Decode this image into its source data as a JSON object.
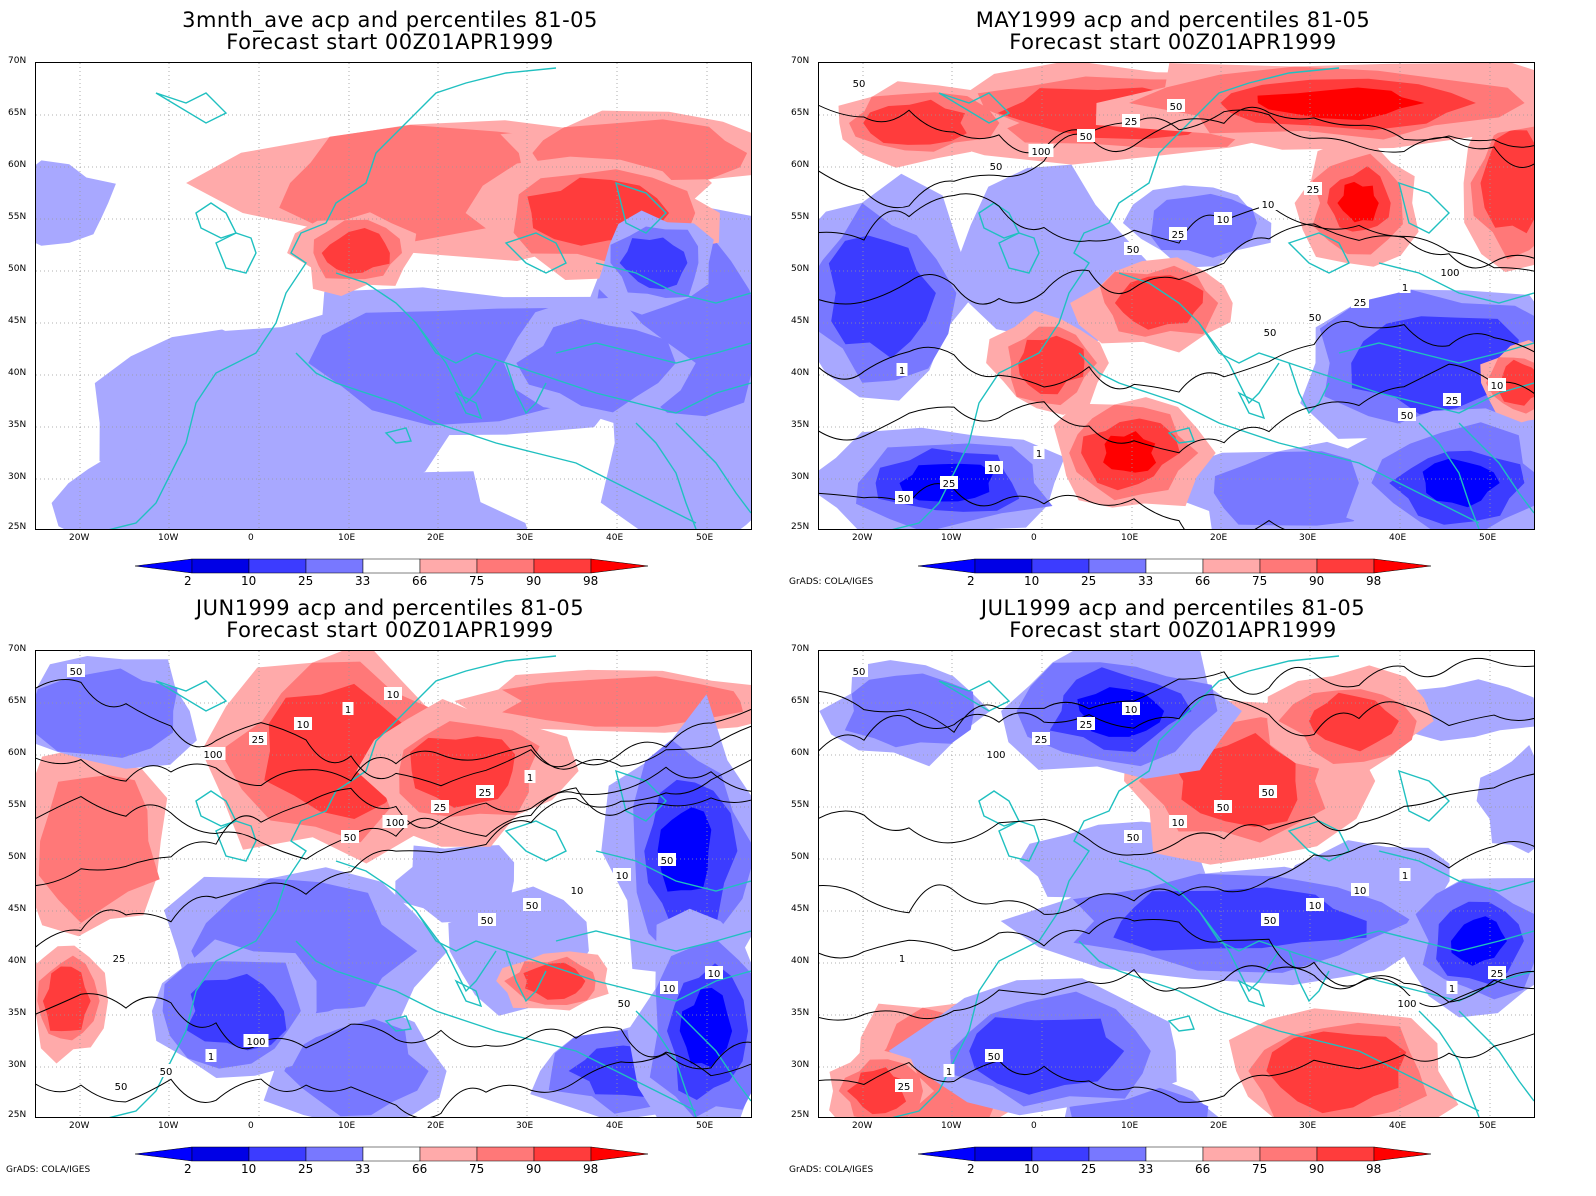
{
  "panels": [
    {
      "title_line1": "3mnth_ave acp and percentiles 81-05",
      "title_line2": "Forecast start 00Z01APR1999",
      "credit": "",
      "contour_labels": []
    },
    {
      "title_line1": "MAY1999 acp and percentiles 81-05",
      "title_line2": "Forecast start 00Z01APR1999",
      "credit": "GrADS: COLA/IGES",
      "contour_labels": [
        "50",
        "50",
        "50",
        "50",
        "50",
        "50",
        "100",
        "25",
        "50",
        "25",
        "25",
        "50",
        "10",
        "25",
        "10",
        "10",
        "25",
        "10",
        "1",
        "1",
        "1",
        "50",
        "25",
        "100"
      ]
    },
    {
      "title_line1": "JUN1999 acp and percentiles 81-05",
      "title_line2": "Forecast start 00Z01APR1999",
      "credit": "GrADS: COLA/IGES",
      "contour_labels": [
        "50",
        "100",
        "50",
        "50",
        "50",
        "50",
        "25",
        "100",
        "50",
        "10",
        "50",
        "10",
        "25",
        "10",
        "10",
        "1",
        "1",
        "25",
        "10",
        "25",
        "100",
        "10",
        "1",
        "50"
      ]
    },
    {
      "title_line1": "JUL1999 acp and percentiles 81-05",
      "title_line2": "Forecast start 00Z01APR1999",
      "credit": "GrADS: COLA/IGES",
      "contour_labels": [
        "50",
        "100",
        "50",
        "50",
        "100",
        "25",
        "25",
        "10",
        "10",
        "1",
        "1",
        "25",
        "50",
        "10",
        "25",
        "50",
        "10",
        "50",
        "1",
        "1"
      ]
    }
  ],
  "lat_labels": [
    "70N",
    "65N",
    "60N",
    "55N",
    "50N",
    "45N",
    "40N",
    "35N",
    "30N",
    "25N"
  ],
  "lon_labels": [
    "20W",
    "10W",
    "0",
    "10E",
    "20E",
    "30E",
    "40E",
    "50E"
  ],
  "colorbar_labels": [
    "2",
    "10",
    "25",
    "33",
    "66",
    "75",
    "90",
    "98"
  ],
  "colorbar_colors": [
    "#0000ff",
    "#0000e6",
    "#3c3cff",
    "#7878ff",
    "#a8a8ff",
    "#ffffff",
    "#ffaaaa",
    "#ff7878",
    "#ff3c3c",
    "#ff0000"
  ],
  "coast_color": "#20c0c0"
}
